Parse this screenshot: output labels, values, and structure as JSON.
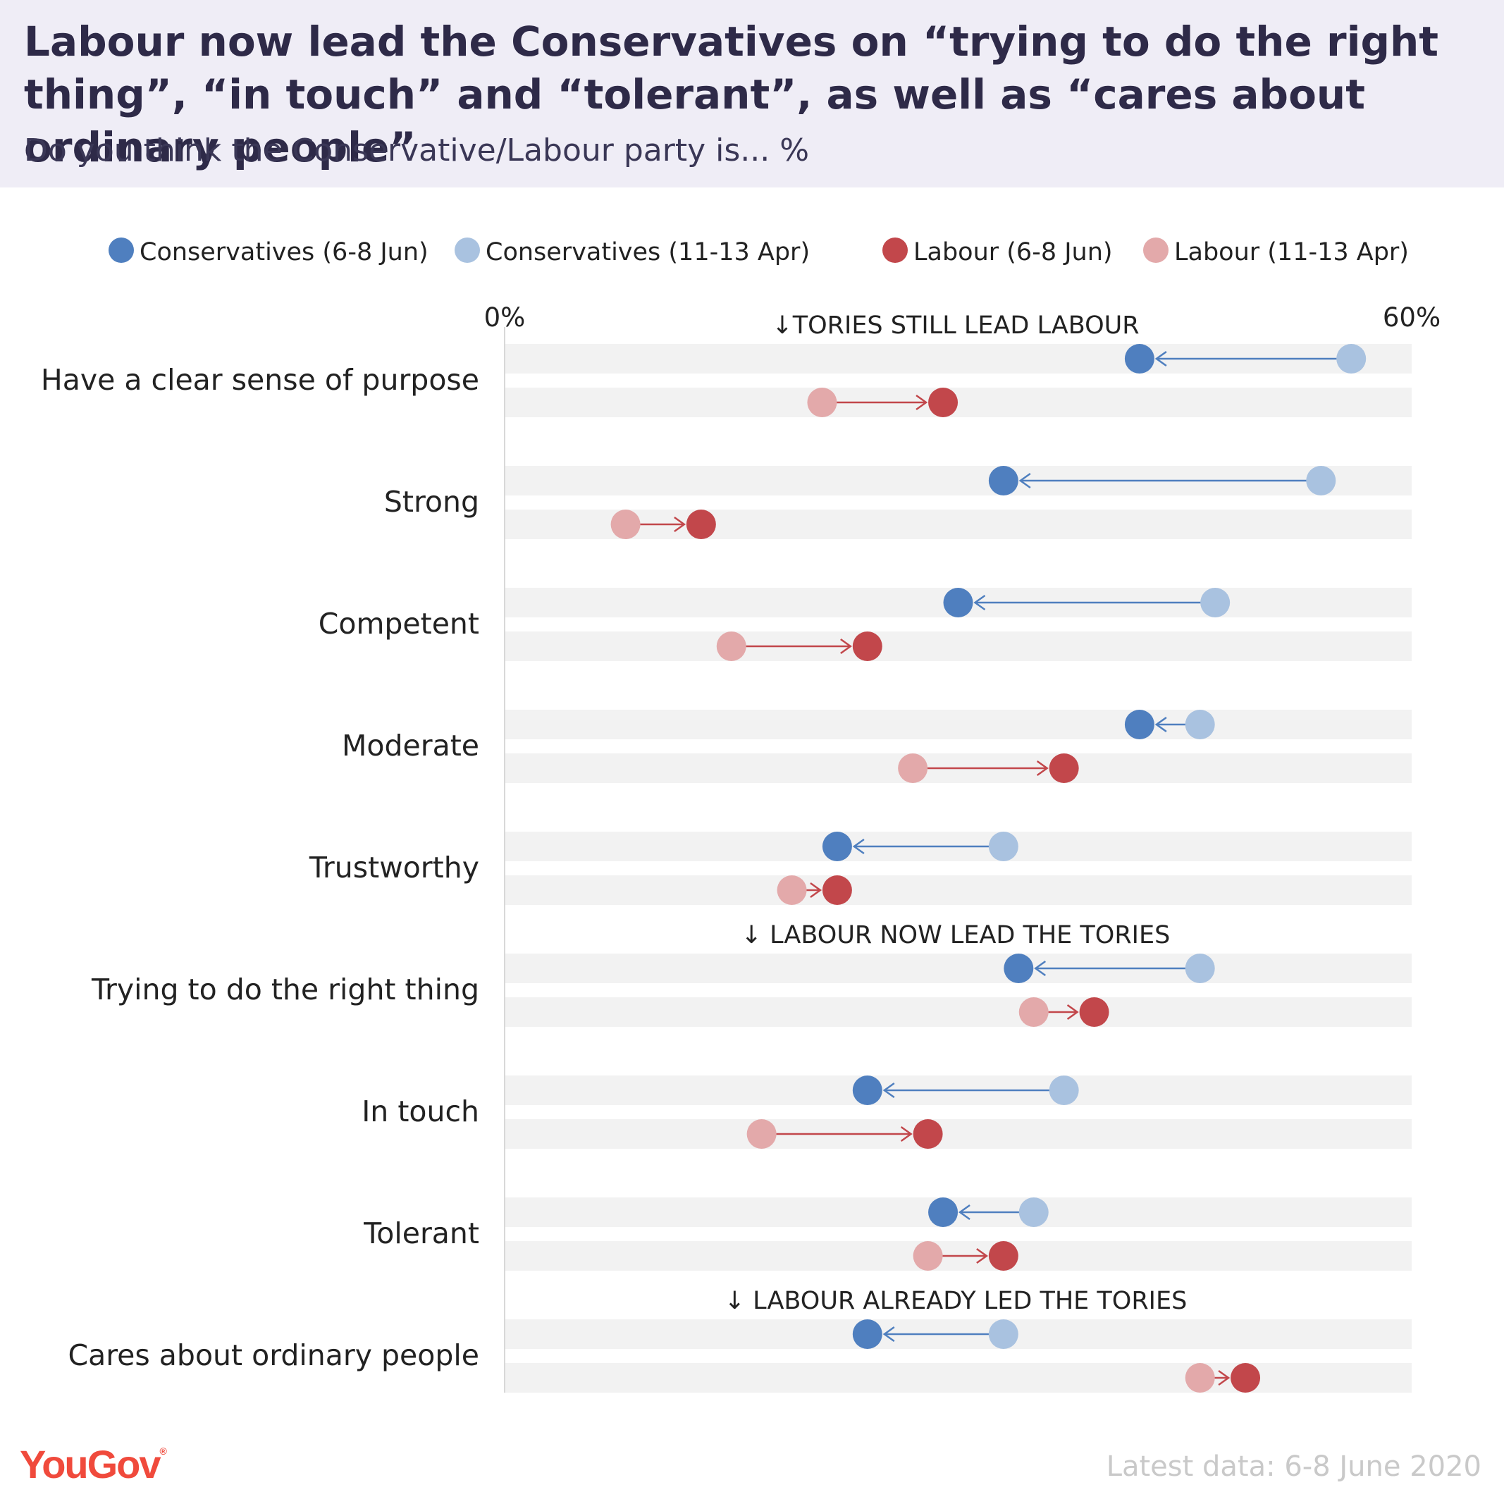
{
  "header": {
    "title": "Labour now lead the Conservatives on “trying to do the right thing”, “in touch” and “tolerant”, as well as “cares about ordinary people”",
    "subtitle": "Do you think the Conservative/Labour party is... %"
  },
  "footer": {
    "logo": "YouGov",
    "note": "Latest data: 6-8 June 2020"
  },
  "colors": {
    "conservatives_jun": "#4f7fbf",
    "conservatives_apr": "#a9c2e0",
    "labour_jun": "#c2474b",
    "labour_apr": "#e3a9aa",
    "band": "#f2f2f2"
  },
  "chart_data": {
    "type": "dumbbell",
    "xlim": [
      0,
      60
    ],
    "x_tick_labels": [
      "0%",
      "60%"
    ],
    "legend": [
      "Conservatives (6-8 Jun)",
      "Conservatives (11-13 Apr)",
      "Labour (6-8 Jun)",
      "Labour (11-13 Apr)"
    ],
    "legend_position": "top",
    "categories": [
      {
        "label": "Have a clear sense of purpose",
        "annotation": "↓TORIES STILL LEAD LABOUR",
        "conservatives": {
          "apr": 56,
          "jun": 42
        },
        "labour": {
          "apr": 21,
          "jun": 29
        }
      },
      {
        "label": "Strong",
        "annotation": "",
        "conservatives": {
          "apr": 54,
          "jun": 33
        },
        "labour": {
          "apr": 8,
          "jun": 13
        }
      },
      {
        "label": "Competent",
        "annotation": "",
        "conservatives": {
          "apr": 47,
          "jun": 30
        },
        "labour": {
          "apr": 15,
          "jun": 24
        }
      },
      {
        "label": "Moderate",
        "annotation": "",
        "conservatives": {
          "apr": 46,
          "jun": 42
        },
        "labour": {
          "apr": 27,
          "jun": 37
        }
      },
      {
        "label": "Trustworthy",
        "annotation": "",
        "conservatives": {
          "apr": 33,
          "jun": 22
        },
        "labour": {
          "apr": 19,
          "jun": 22
        }
      },
      {
        "label": "Trying to do the right thing",
        "annotation": "↓ LABOUR NOW LEAD THE TORIES",
        "conservatives": {
          "apr": 46,
          "jun": 34
        },
        "labour": {
          "apr": 35,
          "jun": 39
        }
      },
      {
        "label": "In touch",
        "annotation": "",
        "conservatives": {
          "apr": 37,
          "jun": 24
        },
        "labour": {
          "apr": 17,
          "jun": 28
        }
      },
      {
        "label": "Tolerant",
        "annotation": "",
        "conservatives": {
          "apr": 35,
          "jun": 29
        },
        "labour": {
          "apr": 28,
          "jun": 33
        }
      },
      {
        "label": "Cares about ordinary people",
        "annotation": "↓ LABOUR ALREADY LED THE TORIES",
        "conservatives": {
          "apr": 33,
          "jun": 24
        },
        "labour": {
          "apr": 46,
          "jun": 49
        }
      }
    ]
  }
}
